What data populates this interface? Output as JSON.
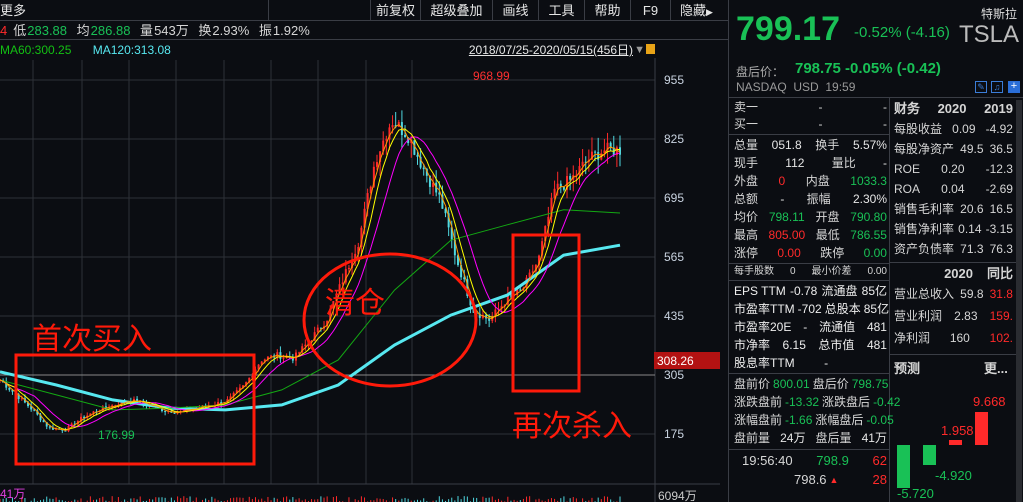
{
  "toolbar": {
    "left_label": "更多",
    "items": [
      "前复权",
      "超级叠加",
      "画线",
      "工具",
      "帮助",
      "F9",
      "隐藏"
    ]
  },
  "quote": {
    "high_tail": "4",
    "low_label": "低",
    "low": "283.88",
    "avg_label": "均",
    "avg": "286.88",
    "vol_label": "量",
    "vol": "543万",
    "turn_label": "换",
    "turn": "2.93%",
    "amp_label": "振",
    "amp": "1.92%"
  },
  "ma": {
    "ma60": "MA60:300.25",
    "ma120": "MA120:313.08",
    "range": "2018/07/25-2020/05/15(456日)"
  },
  "colors": {
    "up": "#ff2a2a",
    "down": "#19c156",
    "ma5": "#ffffff",
    "ma10": "#ffff00",
    "ma20": "#ff00ff",
    "ma60": "#13a813",
    "ma120": "#57e8f0",
    "annotation": "#ff1a0a"
  },
  "chart_data": {
    "type": "candlestick",
    "price_axis": {
      "ticks": [
        955,
        825,
        695,
        565,
        435,
        305,
        175
      ],
      "range": [
        120,
        1000
      ]
    },
    "current_price_label": "308.26",
    "high_label": "968.99",
    "low_label": "176.99",
    "volume_axis_label": "6094万",
    "volume_left_label": "41万",
    "close": [
      294,
      261,
      228,
      188,
      184,
      210,
      228,
      239,
      250,
      241,
      228,
      223,
      232,
      239,
      250,
      283,
      338,
      349,
      342,
      382,
      426,
      514,
      602,
      779,
      867,
      834,
      757,
      691,
      558,
      448,
      426,
      470,
      492,
      558,
      713,
      735,
      779,
      801,
      801
    ],
    "ma60": [
      294,
      261,
      228,
      232,
      239,
      272,
      338,
      492,
      602,
      636,
      669,
      662
    ],
    "ma120": [
      312,
      283,
      250,
      232,
      228,
      239,
      283,
      371,
      437,
      481,
      569,
      591
    ]
  },
  "annotations": {
    "first_buy": "首次买入",
    "clear": "清仓",
    "rebuy": "再次杀入"
  },
  "panel": {
    "price": "799.17",
    "change": "-0.52% (-4.16)",
    "name_cn": "特斯拉",
    "ticker": "TSLA",
    "after_label": "盘后价：",
    "after": "798.75 -0.05% (-0.42)",
    "exchange": "NASDAQ  USD  19:59",
    "book": [
      {
        "label": "卖一",
        "a": "-",
        "b": "-"
      },
      {
        "label": "买一",
        "a": "-",
        "b": "-"
      }
    ],
    "stats": [
      [
        "总量",
        "051.8",
        "换手",
        "5.57%"
      ],
      [
        "现手",
        "112",
        "量比",
        "-"
      ],
      [
        "外盘",
        "0",
        "内盘",
        "1033.3"
      ],
      [
        "总额",
        "-",
        "振幅",
        "2.30%"
      ],
      [
        "均价",
        "798.11",
        "开盘",
        "790.80"
      ],
      [
        "最高",
        "805.00",
        "最低",
        "786.55"
      ],
      [
        "涨停",
        "0.00",
        "跌停",
        "0.00"
      ]
    ],
    "lot": {
      "label": "每手股数",
      "value": "0",
      "tick_label": "最小价差",
      "tick": "0.00"
    },
    "valuation": [
      [
        "EPS TTM",
        "-0.78",
        "流通盘",
        "85亿"
      ],
      [
        "市盈率TTM",
        "-702",
        "总股本",
        "85亿"
      ],
      [
        "市盈率20E",
        "-",
        "流通值",
        "481"
      ],
      [
        "市净率",
        "6.15",
        "总市值",
        "481"
      ],
      [
        "股息率TTM",
        "-",
        "",
        ""
      ]
    ],
    "prepost": [
      [
        "盘前价",
        "800.01",
        "盘后价",
        "798.75"
      ],
      [
        "涨跌盘前",
        "-13.32",
        "涨跌盘后",
        "-0.42"
      ],
      [
        "涨幅盘前",
        "-1.66",
        "涨幅盘后",
        "-0.05"
      ],
      [
        "盘前量",
        "24万",
        "盘后量",
        "41万"
      ]
    ],
    "tick": {
      "time": "19:56:40",
      "price": "798.9",
      "vol": "62",
      "price2": "798.6",
      "vol2": "28"
    },
    "fin_header": [
      "财务",
      "2020",
      "2019"
    ],
    "fin": [
      [
        "每股收益",
        "0.09",
        "-4.92"
      ],
      [
        "每股净资产",
        "49.5",
        "36.5"
      ],
      [
        "ROE",
        "0.20",
        "-12.3"
      ],
      [
        "ROA",
        "0.04",
        "-2.69"
      ],
      [
        "销售毛利率",
        "20.6",
        "16.5"
      ],
      [
        "销售净利率",
        "0.14",
        "-3.15"
      ],
      [
        "资产负债率",
        "71.3",
        "76.3"
      ]
    ],
    "fin2_header": [
      "2020",
      "同比"
    ],
    "fin2": [
      [
        "营业总收入",
        "59.8",
        "31.8"
      ],
      [
        "营业利润",
        "2.83",
        "159."
      ],
      [
        "净利润",
        "160",
        "102."
      ]
    ],
    "forecast": {
      "title": "预测",
      "more": "更...",
      "values": [
        -5.72,
        -4.92,
        1.958,
        9.668
      ],
      "labels": [
        "-5.720",
        "-4.920",
        "1.958",
        "9.668"
      ]
    }
  }
}
